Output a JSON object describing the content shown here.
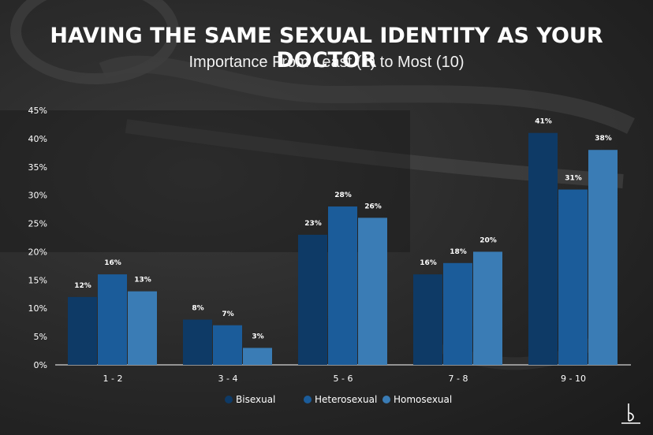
{
  "header": {
    "title": "HAVING THE SAME SEXUAL IDENTITY AS YOUR DOCTOR",
    "subtitle": "Importance From Least (1) to Most (10)"
  },
  "colors": {
    "Bisexual": "#0e3a66",
    "Heterosexual": "#1b5c9a",
    "Homosexual": "#3a7cb5",
    "axis": "#ffffff"
  },
  "chart_data": {
    "type": "bar",
    "title": "HAVING THE SAME SEXUAL IDENTITY AS YOUR DOCTOR",
    "subtitle": "Importance From Least (1) to Most (10)",
    "categories": [
      "1 - 2",
      "3 - 4",
      "5 - 6",
      "7 - 8",
      "9 - 10"
    ],
    "series": [
      {
        "name": "Bisexual",
        "values": [
          12,
          8,
          23,
          16,
          41
        ]
      },
      {
        "name": "Heterosexual",
        "values": [
          16,
          7,
          28,
          18,
          31
        ]
      },
      {
        "name": "Homosexual",
        "values": [
          13,
          3,
          26,
          20,
          38
        ]
      }
    ],
    "ylim": [
      0,
      45
    ],
    "yticks": [
      "0%",
      "5%",
      "10%",
      "15%",
      "20%",
      "25%",
      "30%",
      "35%",
      "40%",
      "45%"
    ],
    "value_suffix": "%",
    "grid": false,
    "legend_position": "bottom"
  }
}
